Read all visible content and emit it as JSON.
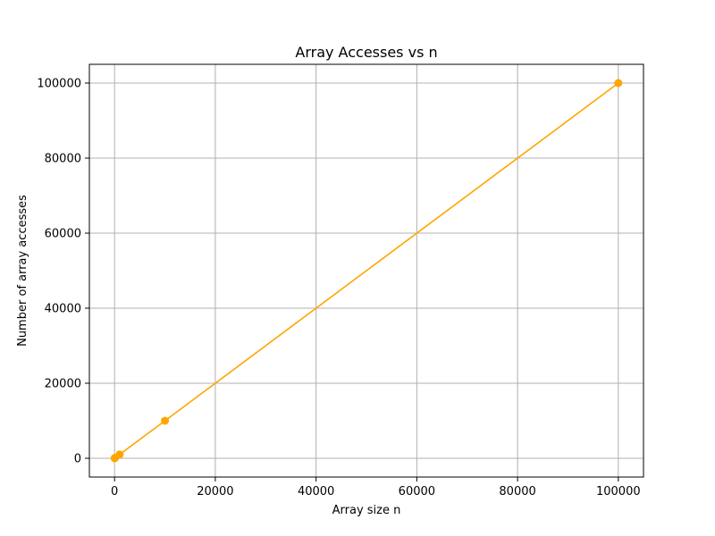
{
  "chart_data": {
    "type": "line",
    "title": "Array Accesses vs n",
    "xlabel": "Array size n",
    "ylabel": "Number of array accesses",
    "xlim": [
      -5000,
      105000
    ],
    "ylim": [
      -5000,
      105000
    ],
    "x_ticks": [
      0,
      20000,
      40000,
      60000,
      80000,
      100000
    ],
    "x_tick_labels": [
      "0",
      "20000",
      "40000",
      "60000",
      "80000",
      "100000"
    ],
    "y_ticks": [
      0,
      20000,
      40000,
      60000,
      80000,
      100000
    ],
    "y_tick_labels": [
      "0",
      "20000",
      "40000",
      "60000",
      "80000",
      "100000"
    ],
    "grid": true,
    "legend": "none",
    "series": [
      {
        "color": "#FFA500",
        "marker": "circle",
        "x": [
          10,
          100,
          1000,
          10000,
          100000
        ],
        "y": [
          10,
          100,
          1000,
          10000,
          100000
        ]
      }
    ]
  }
}
